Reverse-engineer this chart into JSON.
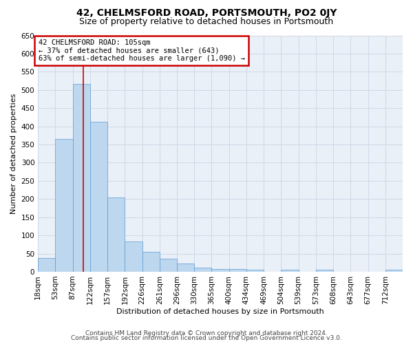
{
  "title": "42, CHELMSFORD ROAD, PORTSMOUTH, PO2 0JY",
  "subtitle": "Size of property relative to detached houses in Portsmouth",
  "xlabel": "Distribution of detached houses by size in Portsmouth",
  "ylabel": "Number of detached properties",
  "footer_line1": "Contains HM Land Registry data © Crown copyright and database right 2024.",
  "footer_line2": "Contains public sector information licensed under the Open Government Licence v3.0.",
  "bar_values": [
    38,
    365,
    517,
    413,
    205,
    84,
    54,
    35,
    22,
    11,
    8,
    8,
    5,
    0,
    5,
    0,
    5,
    0,
    0,
    0,
    5
  ],
  "bin_labels": [
    "18sqm",
    "53sqm",
    "87sqm",
    "122sqm",
    "157sqm",
    "192sqm",
    "226sqm",
    "261sqm",
    "296sqm",
    "330sqm",
    "365sqm",
    "400sqm",
    "434sqm",
    "469sqm",
    "504sqm",
    "539sqm",
    "573sqm",
    "608sqm",
    "643sqm",
    "677sqm",
    "712sqm"
  ],
  "bar_color": "#bdd7ee",
  "bar_edge_color": "#5b9bd5",
  "red_line_x": 2.6,
  "annotation_text": "42 CHELMSFORD ROAD: 105sqm\n← 37% of detached houses are smaller (643)\n63% of semi-detached houses are larger (1,090) →",
  "annotation_box_color": "#ffffff",
  "annotation_box_edge_color": "#cc0000",
  "ylim_max": 650,
  "yticks": [
    0,
    50,
    100,
    150,
    200,
    250,
    300,
    350,
    400,
    450,
    500,
    550,
    600,
    650
  ],
  "grid_color": "#d0d8e8",
  "background_color": "#eaf0f8",
  "fig_background": "#ffffff",
  "title_fontsize": 10,
  "subtitle_fontsize": 9,
  "axis_label_fontsize": 8,
  "tick_fontsize": 7.5,
  "annotation_fontsize": 7.5,
  "footer_fontsize": 6.5
}
